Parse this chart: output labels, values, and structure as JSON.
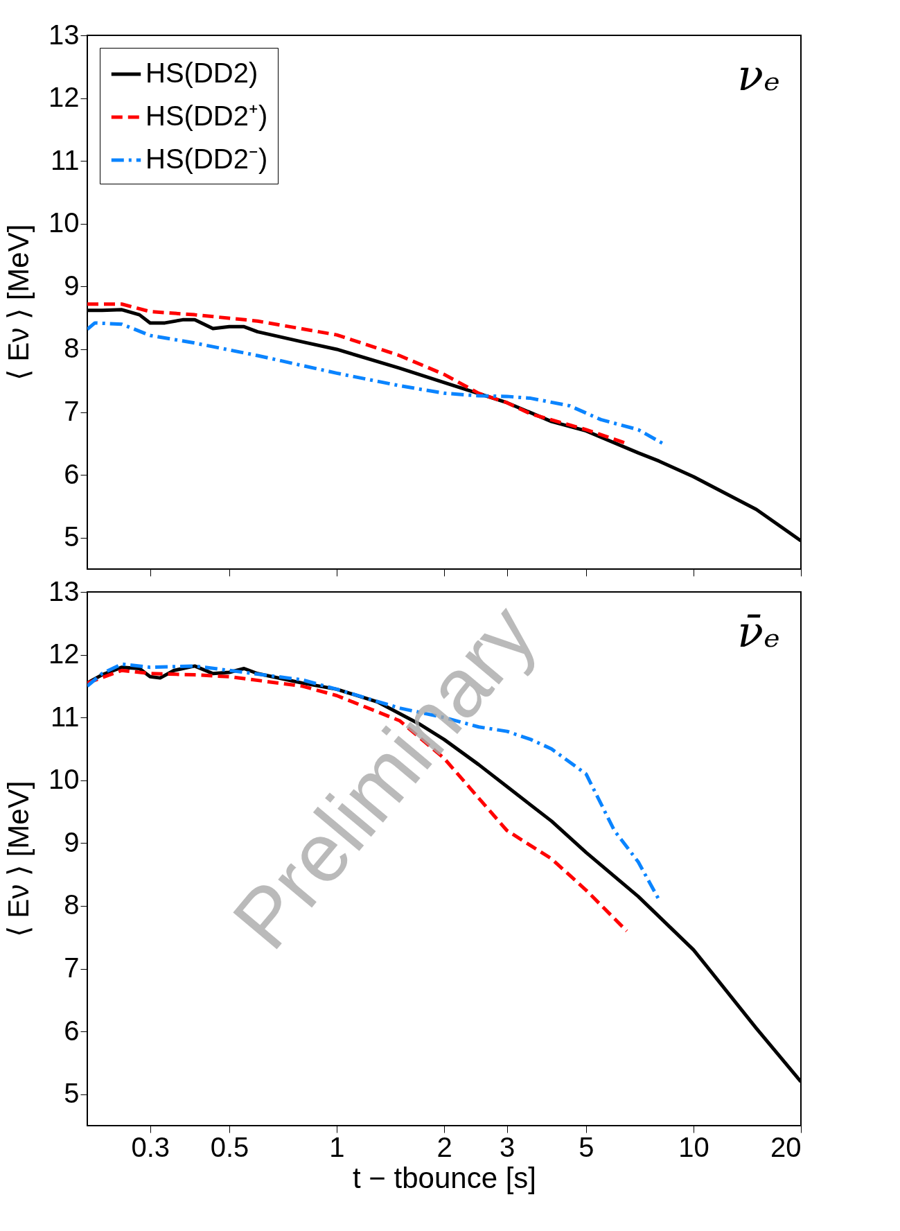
{
  "chart_data": [
    {
      "type": "line",
      "ylabel": "⟨ Eν ⟩ [MeV]",
      "log": "x",
      "xlim": [
        0.2,
        20
      ],
      "xticks": [
        0.3,
        0.5,
        1,
        2,
        3,
        5,
        10,
        20
      ],
      "ylim": [
        4.5,
        13
      ],
      "yticks": [
        5,
        6,
        7,
        8,
        9,
        10,
        11,
        12,
        13
      ],
      "tick_labels": "y",
      "grid": false,
      "legend": "top left",
      "annotations": [
        "νₑ"
      ],
      "series": [
        {
          "name": "HS(DD2)",
          "color": "#000000",
          "line_style": "solid",
          "x": [
            0.2,
            0.22,
            0.25,
            0.28,
            0.3,
            0.33,
            0.37,
            0.4,
            0.45,
            0.5,
            0.55,
            0.6,
            0.8,
            1,
            1.5,
            2,
            3,
            4,
            5,
            7,
            8,
            10,
            15,
            20
          ],
          "values": [
            8.62,
            8.62,
            8.63,
            8.55,
            8.42,
            8.42,
            8.47,
            8.47,
            8.33,
            8.36,
            8.36,
            8.28,
            8.12,
            8.0,
            7.7,
            7.47,
            7.15,
            6.85,
            6.7,
            6.35,
            6.22,
            5.97,
            5.45,
            4.95
          ]
        },
        {
          "name": "HS(DD2⁺)",
          "color": "#ff0000",
          "line_style": "dashed",
          "x": [
            0.2,
            0.25,
            0.3,
            0.4,
            0.6,
            1,
            1.5,
            2,
            2.5,
            3,
            3.5,
            5,
            6.5
          ],
          "values": [
            8.72,
            8.72,
            8.6,
            8.55,
            8.45,
            8.23,
            7.9,
            7.6,
            7.3,
            7.15,
            6.97,
            6.72,
            6.5
          ]
        },
        {
          "name": "HS(DD2⁻)",
          "color": "#0a84ff",
          "line_style": "dotted",
          "x": [
            0.2,
            0.21,
            0.25,
            0.3,
            0.4,
            0.6,
            1,
            1.5,
            2,
            2.5,
            3,
            3.5,
            4.5,
            5.5,
            7,
            8.2
          ],
          "values": [
            8.32,
            8.42,
            8.4,
            8.22,
            8.1,
            7.9,
            7.62,
            7.42,
            7.3,
            7.26,
            7.25,
            7.22,
            7.1,
            6.88,
            6.72,
            6.5
          ]
        }
      ]
    },
    {
      "type": "line",
      "xlabel": "t − tbounce  [s]",
      "ylabel": "⟨ Eν ⟩ [MeV]",
      "log": "x",
      "xlim": [
        0.2,
        20
      ],
      "xticks": [
        0.3,
        0.5,
        1,
        2,
        3,
        5,
        10,
        20
      ],
      "ylim": [
        4.5,
        13
      ],
      "yticks": [
        5,
        6,
        7,
        8,
        9,
        10,
        11,
        12,
        13
      ],
      "grid": false,
      "legend": false,
      "annotations": [
        "ν̄ₑ",
        "Preliminary"
      ],
      "series": [
        {
          "color": "#000000",
          "line_style": "solid",
          "x": [
            0.2,
            0.22,
            0.25,
            0.28,
            0.3,
            0.32,
            0.35,
            0.4,
            0.45,
            0.5,
            0.55,
            0.6,
            0.8,
            1,
            1.3,
            1.7,
            2,
            2.5,
            3,
            4,
            5,
            7,
            10,
            15,
            20
          ],
          "values": [
            11.55,
            11.68,
            11.8,
            11.78,
            11.65,
            11.63,
            11.75,
            11.82,
            11.7,
            11.72,
            11.78,
            11.7,
            11.55,
            11.45,
            11.25,
            10.9,
            10.65,
            10.25,
            9.9,
            9.35,
            8.85,
            8.15,
            7.3,
            6.05,
            5.2
          ]
        },
        {
          "color": "#ff0000",
          "line_style": "dashed",
          "x": [
            0.2,
            0.25,
            0.3,
            0.4,
            0.5,
            0.8,
            1,
            1.5,
            2,
            3,
            4,
            5,
            6.5
          ],
          "values": [
            11.55,
            11.75,
            11.7,
            11.68,
            11.65,
            11.5,
            11.35,
            10.95,
            10.35,
            9.2,
            8.75,
            8.25,
            7.6
          ]
        },
        {
          "color": "#0a84ff",
          "line_style": "dotted",
          "x": [
            0.2,
            0.22,
            0.25,
            0.3,
            0.4,
            0.5,
            0.8,
            1,
            1.5,
            2,
            2.5,
            3,
            3.5,
            4,
            5,
            6,
            7,
            8
          ],
          "values": [
            11.5,
            11.7,
            11.85,
            11.8,
            11.82,
            11.75,
            11.6,
            11.45,
            11.15,
            11.0,
            10.85,
            10.78,
            10.65,
            10.5,
            10.1,
            9.2,
            8.7,
            8.1
          ]
        }
      ]
    }
  ]
}
